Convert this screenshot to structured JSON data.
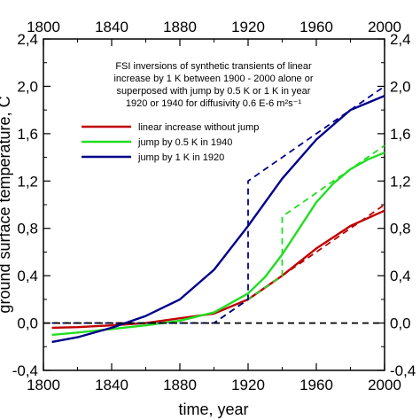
{
  "chart_data": {
    "type": "line",
    "xlabel": "time, year",
    "ylabel": "ground surface temperature, C",
    "xlim": [
      1800,
      2000
    ],
    "ylim": [
      -0.4,
      2.4
    ],
    "x_ticks": [
      "1800",
      "1840",
      "1880",
      "1920",
      "1960",
      "2000"
    ],
    "x_ticks_top": [
      "1800",
      "1840",
      "1880",
      "1920",
      "1960",
      "2000"
    ],
    "x_minor_ticks": [
      1820,
      1860,
      1900,
      1940,
      1980
    ],
    "y_ticks": [
      "-0,4",
      "0,0",
      "0,4",
      "0,8",
      "1,2",
      "1,6",
      "2,0",
      "2,4"
    ],
    "y_ticks_right": [
      "-0,4",
      "0,0",
      "0,4",
      "0,8",
      "1,2",
      "1,6",
      "2,0",
      "2,4"
    ],
    "y_minor_ticks": [
      -0.2,
      0.2,
      0.6,
      1.0,
      1.4,
      1.8,
      2.2
    ],
    "annotation": [
      "FSI inversions of synthetic transients of linear",
      "increase by 1 K between 1900 - 2000 alone or",
      "superposed with jump by 0.5 K or 1 K in year",
      "1920 or 1940 for diffusivity 0.6 E-6 m²s⁻¹"
    ],
    "legend_position": "upper-left",
    "colors": {
      "red": "#c00000",
      "green": "#22dd22",
      "blue": "#00008b",
      "black": "#000000"
    },
    "series": [
      {
        "name": "linear increase without jump",
        "color": "#c00000",
        "style": "solid",
        "x": [
          1805,
          1820,
          1840,
          1860,
          1880,
          1900,
          1920,
          1940,
          1960,
          1980,
          2000
        ],
        "y": [
          -0.04,
          -0.035,
          -0.02,
          0.0,
          0.04,
          0.08,
          0.2,
          0.4,
          0.63,
          0.82,
          0.95
        ]
      },
      {
        "name": "jump by 0.5 K in 1940",
        "color": "#22dd22",
        "style": "solid",
        "x": [
          1805,
          1820,
          1840,
          1860,
          1880,
          1900,
          1920,
          1930,
          1940,
          1950,
          1960,
          1970,
          1980,
          1990,
          2000
        ],
        "y": [
          -0.1,
          -0.08,
          -0.05,
          -0.02,
          0.02,
          0.09,
          0.25,
          0.39,
          0.58,
          0.8,
          1.02,
          1.18,
          1.3,
          1.38,
          1.44
        ]
      },
      {
        "name": "jump by 1 K in 1920",
        "color": "#00008b",
        "style": "solid",
        "x": [
          1805,
          1820,
          1840,
          1860,
          1880,
          1900,
          1920,
          1940,
          1960,
          1980,
          2000
        ],
        "y": [
          -0.16,
          -0.12,
          -0.04,
          0.06,
          0.2,
          0.45,
          0.82,
          1.22,
          1.55,
          1.8,
          1.92
        ]
      },
      {
        "color": "#c00000",
        "style": "dashed",
        "x": [
          1805,
          1900,
          2000
        ],
        "y": [
          0.0,
          0.0,
          1.0
        ]
      },
      {
        "color": "#22dd22",
        "style": "dashed",
        "x": [
          1805,
          1900,
          1940,
          1940,
          2000
        ],
        "y": [
          0.0,
          0.0,
          0.4,
          0.9,
          1.5
        ]
      },
      {
        "color": "#00008b",
        "style": "dashed",
        "x": [
          1805,
          1900,
          1920,
          1920,
          2000
        ],
        "y": [
          0.0,
          0.0,
          0.2,
          1.2,
          2.0
        ]
      },
      {
        "color": "#000000",
        "style": "dashed",
        "x": [
          1800,
          2000
        ],
        "y": [
          0.0,
          0.0
        ]
      }
    ]
  }
}
